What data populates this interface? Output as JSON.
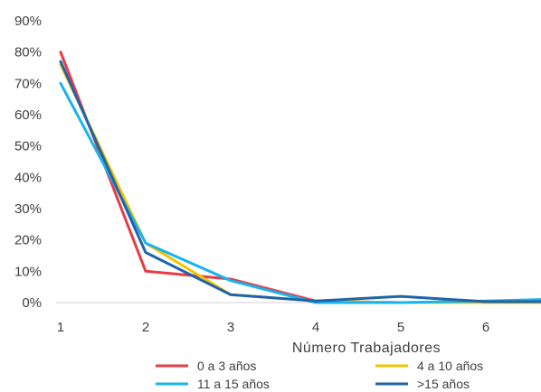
{
  "chart_data": {
    "type": "line",
    "title": "",
    "xlabel": "Número Trabajadores",
    "ylabel": "",
    "x": [
      1,
      2,
      3,
      4,
      5,
      6,
      6.7
    ],
    "xticks": [
      1,
      2,
      3,
      4,
      5,
      6
    ],
    "ylim": [
      0,
      90
    ],
    "yticks": [
      "0%",
      "10%",
      "20%",
      "30%",
      "40%",
      "50%",
      "60%",
      "70%",
      "80%",
      "90%"
    ],
    "grid": false,
    "legend_position": "bottom",
    "series": [
      {
        "name": "0 a 3 años",
        "color": "#e63c46",
        "values": [
          80,
          10,
          7.5,
          0.5,
          0,
          0,
          0
        ]
      },
      {
        "name": "4 a 10 años",
        "color": "#f5c200",
        "values": [
          76,
          19,
          2.5,
          0.5,
          0,
          0,
          0
        ]
      },
      {
        "name": "11 a 15 años",
        "color": "#18b4ec",
        "values": [
          70,
          19,
          7,
          0,
          0,
          0.5,
          1
        ]
      },
      {
        "name": ">15 años",
        "color": "#1f64a8",
        "values": [
          77,
          16,
          2.5,
          0.5,
          2,
          0.3,
          0.3
        ]
      }
    ]
  }
}
